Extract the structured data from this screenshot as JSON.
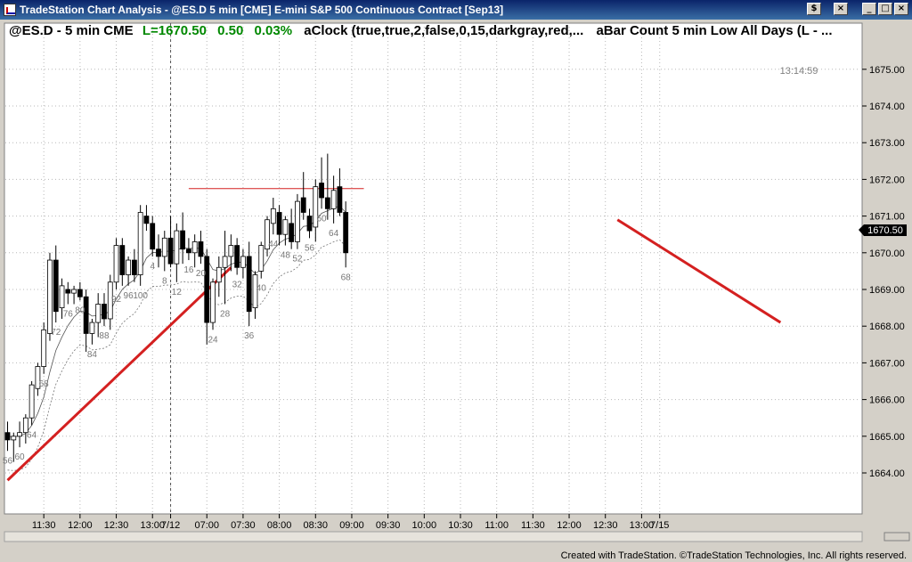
{
  "window": {
    "title": "TradeStation Chart Analysis - @ES.D 5 min [CME] E-mini S&P 500 Continuous Contract [Sep13]",
    "buttons": {
      "left_pin": "$",
      "left_close": "×",
      "minimize": "_",
      "maximize": "□",
      "close": "×"
    }
  },
  "header": {
    "symbol": "@ES.D - 5 min  CME",
    "last": "L=1670.50",
    "change": "0.50",
    "change_pct": "0.03%",
    "study1": "aClock (true,true,2,false,0,15,darkgray,red,...",
    "study2": "aBar Count 5 min Low All Days (L - ..."
  },
  "clock_label": "13:14:59",
  "price_tag": "1670.50",
  "footer": "Created with TradeStation. ©TradeStation Technologies, Inc. All rights reserved.",
  "colors": {
    "up": "#ffffff",
    "down": "#000000",
    "trendline": "#d42020",
    "marker_red": "#d42020",
    "marker_blue": "#1a1aa8",
    "bar_count": "#777777",
    "background": "#ffffff",
    "price_tag": "#000000"
  },
  "chart_data": {
    "type": "candlestick",
    "y_range": [
      1663,
      1676
    ],
    "y_ticks": [
      1664.0,
      1665.0,
      1666.0,
      1667.0,
      1668.0,
      1669.0,
      1670.0,
      1671.0,
      1672.0,
      1673.0,
      1674.0,
      1675.0
    ],
    "x_ticks": [
      "11:30",
      "12:00",
      "12:30",
      "13:00",
      "7/12",
      "07:00",
      "07:30",
      "08:00",
      "08:30",
      "09:00",
      "09:30",
      "10:00",
      "10:30",
      "11:00",
      "11:30",
      "12:00",
      "12:30",
      "13:00",
      "7/15"
    ],
    "x_tick_bar_index": [
      6,
      12,
      18,
      24,
      27,
      33,
      39,
      45,
      51,
      57,
      63,
      69,
      75,
      81,
      87,
      93,
      99,
      105,
      108
    ],
    "session_break_bar": 27,
    "ohlc": [
      [
        1665.1,
        1665.4,
        1664.6,
        1664.9
      ],
      [
        1664.9,
        1665.1,
        1664.3,
        1665.0
      ],
      [
        1665.0,
        1665.4,
        1664.7,
        1665.1
      ],
      [
        1665.1,
        1665.6,
        1664.8,
        1665.5
      ],
      [
        1665.5,
        1666.5,
        1665.3,
        1666.4
      ],
      [
        1666.3,
        1667.0,
        1666.1,
        1666.9
      ],
      [
        1666.9,
        1668.1,
        1666.7,
        1667.9
      ],
      [
        1667.8,
        1670.0,
        1667.6,
        1669.8
      ],
      [
        1669.8,
        1670.2,
        1668.1,
        1668.4
      ],
      [
        1668.5,
        1669.3,
        1668.2,
        1669.1
      ],
      [
        1669.0,
        1669.2,
        1668.6,
        1668.9
      ],
      [
        1668.9,
        1669.1,
        1668.6,
        1669.0
      ],
      [
        1669.0,
        1669.2,
        1668.7,
        1668.8
      ],
      [
        1668.8,
        1669.0,
        1667.3,
        1667.8
      ],
      [
        1667.8,
        1668.2,
        1667.5,
        1668.1
      ],
      [
        1668.1,
        1668.9,
        1667.7,
        1668.6
      ],
      [
        1668.6,
        1668.9,
        1668.0,
        1668.2
      ],
      [
        1668.2,
        1669.4,
        1667.9,
        1669.2
      ],
      [
        1669.2,
        1670.4,
        1669.0,
        1670.2
      ],
      [
        1670.2,
        1670.4,
        1669.1,
        1669.4
      ],
      [
        1669.4,
        1669.9,
        1669.1,
        1669.8
      ],
      [
        1669.8,
        1670.1,
        1669.2,
        1669.4
      ],
      [
        1669.4,
        1671.3,
        1669.1,
        1671.1
      ],
      [
        1671.0,
        1671.3,
        1670.6,
        1670.8
      ],
      [
        1670.8,
        1671.0,
        1669.9,
        1670.1
      ],
      [
        1670.1,
        1670.5,
        1669.6,
        1669.9
      ],
      [
        1669.9,
        1670.6,
        1669.5,
        1670.4
      ],
      [
        1670.4,
        1671.0,
        1669.6,
        1669.7
      ],
      [
        1669.7,
        1670.8,
        1669.2,
        1670.6
      ],
      [
        1670.6,
        1671.1,
        1669.7,
        1670.1
      ],
      [
        1670.1,
        1670.4,
        1669.8,
        1670.0
      ],
      [
        1670.0,
        1670.5,
        1669.6,
        1670.3
      ],
      [
        1670.3,
        1670.6,
        1669.7,
        1669.9
      ],
      [
        1669.9,
        1670.1,
        1667.5,
        1668.1
      ],
      [
        1668.1,
        1669.3,
        1667.9,
        1669.2
      ],
      [
        1669.2,
        1669.9,
        1668.8,
        1669.6
      ],
      [
        1669.6,
        1670.6,
        1668.6,
        1669.9
      ],
      [
        1669.9,
        1670.5,
        1669.5,
        1670.2
      ],
      [
        1670.2,
        1670.4,
        1669.4,
        1669.6
      ],
      [
        1669.6,
        1670.1,
        1669.3,
        1669.9
      ],
      [
        1669.9,
        1670.3,
        1668.0,
        1668.4
      ],
      [
        1668.5,
        1669.5,
        1668.2,
        1669.4
      ],
      [
        1669.5,
        1670.3,
        1669.3,
        1670.2
      ],
      [
        1670.1,
        1671.0,
        1669.9,
        1670.9
      ],
      [
        1670.8,
        1671.5,
        1670.5,
        1671.2
      ],
      [
        1671.1,
        1671.3,
        1670.2,
        1670.5
      ],
      [
        1670.5,
        1671.0,
        1670.2,
        1670.9
      ],
      [
        1670.8,
        1671.2,
        1670.1,
        1670.3
      ],
      [
        1670.3,
        1671.6,
        1670.1,
        1671.4
      ],
      [
        1671.5,
        1672.2,
        1670.9,
        1671.1
      ],
      [
        1671.0,
        1671.2,
        1670.4,
        1670.6
      ],
      [
        1670.7,
        1672.0,
        1670.3,
        1671.8
      ],
      [
        1671.9,
        1672.6,
        1671.2,
        1671.5
      ],
      [
        1671.5,
        1672.7,
        1670.9,
        1671.2
      ],
      [
        1671.2,
        1672.1,
        1670.8,
        1671.7
      ],
      [
        1671.8,
        1672.3,
        1671.0,
        1671.1
      ],
      [
        1671.1,
        1671.4,
        1669.6,
        1670.0
      ]
    ],
    "trendlines": [
      {
        "from": [
          0,
          1663.8
        ],
        "to": [
          37,
          1669.6
        ]
      },
      {
        "from": [
          101,
          1670.9
        ],
        "to": [
          128,
          1668.1
        ]
      }
    ],
    "resistance_line": {
      "from_bar": 30,
      "to_bar": 59,
      "price": 1671.75
    }
  }
}
